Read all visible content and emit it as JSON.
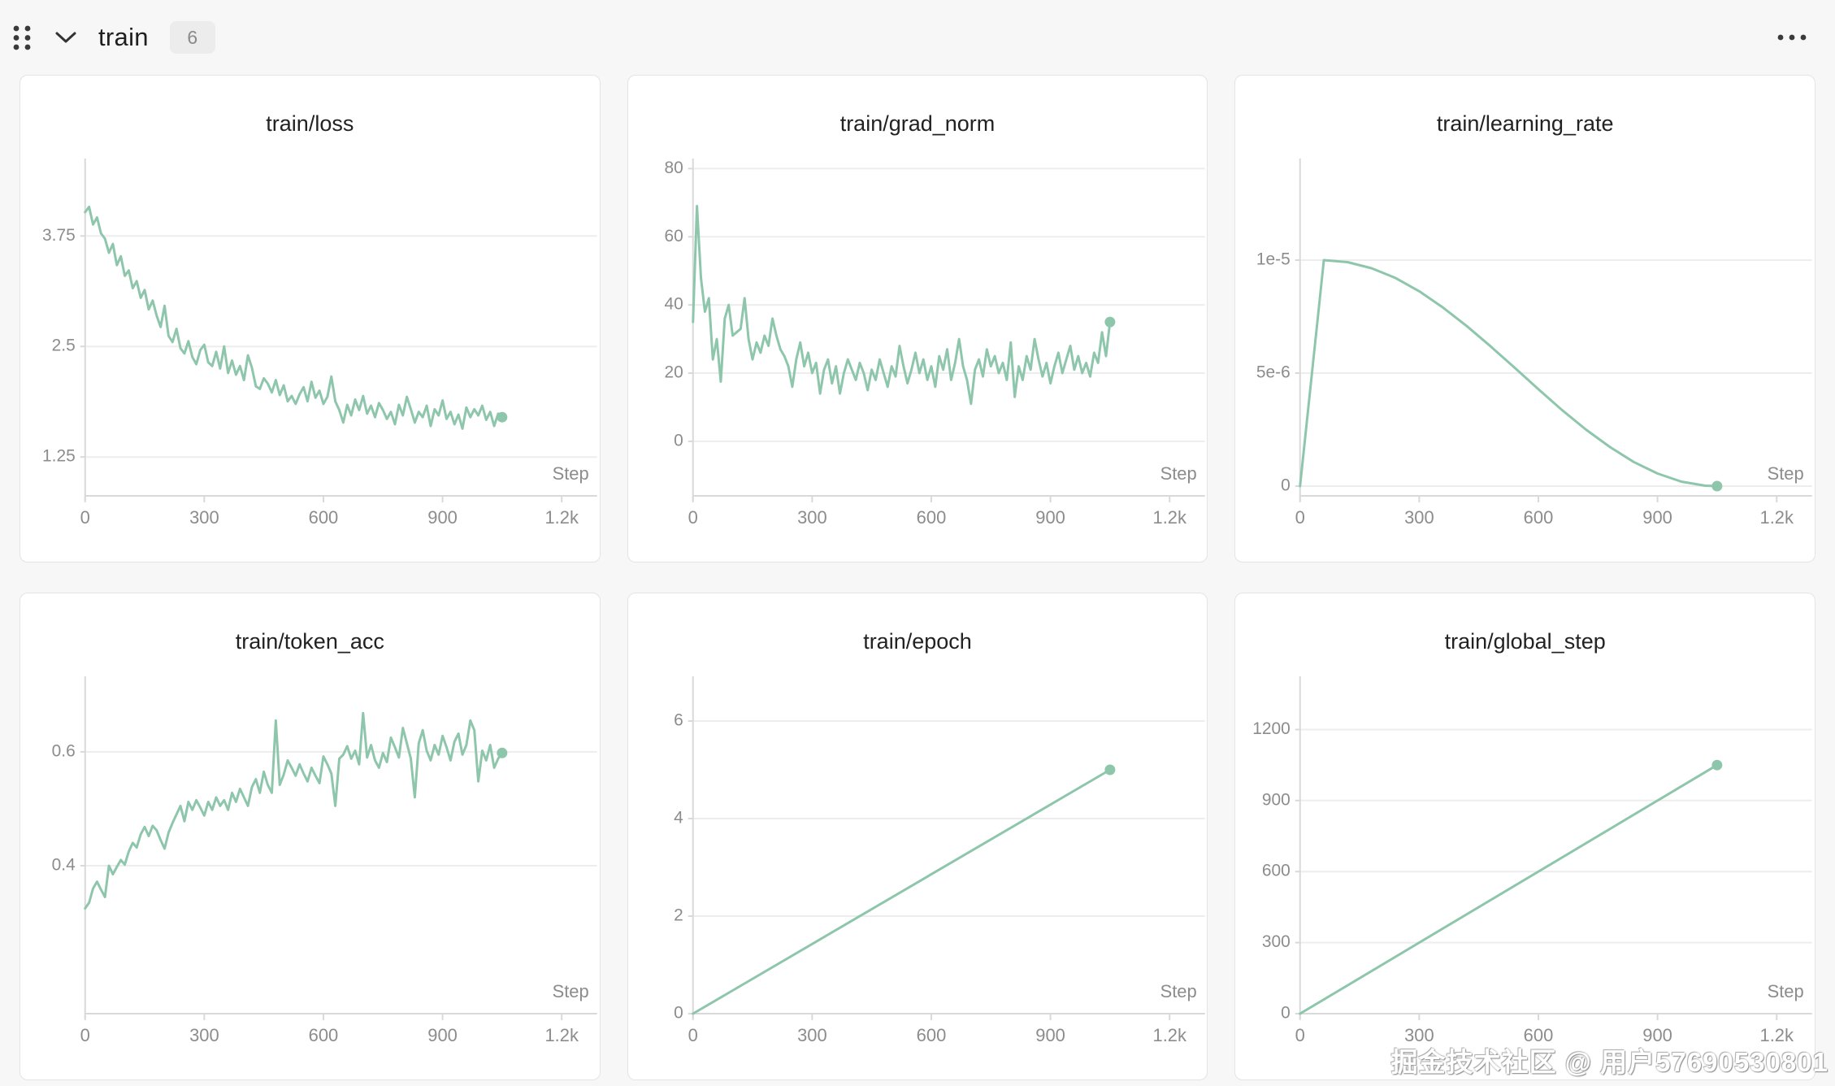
{
  "header": {
    "title": "train",
    "count": "6"
  },
  "watermark": {
    "text": "掘金技术社区 @ 用户57690530801"
  },
  "style": {
    "line_color": "#8ec6ac",
    "grid_color": "#ededed",
    "axis_color": "#d9d9d9",
    "tick_color": "#8c8c8c",
    "title_color": "#222222",
    "card_bg": "#ffffff",
    "page_bg": "#f7f7f8"
  },
  "chart_data": [
    {
      "type": "line",
      "title": "train/loss",
      "xlabel": "Step",
      "legend": "none",
      "grid": "horizontal",
      "xlim": [
        0,
        1240
      ],
      "ylim": [
        0.81,
        4.59
      ],
      "xticks": {
        "values": [
          0,
          300,
          600,
          900,
          1200
        ],
        "labels": [
          "0",
          "300",
          "600",
          "900",
          "1.2k"
        ]
      },
      "yticks": {
        "values": [
          1.25,
          2.5,
          3.75
        ],
        "labels": [
          "1.25",
          "2.5",
          "3.75"
        ]
      },
      "x_start": 0,
      "x_step": 10,
      "values": [
        4.02,
        4.08,
        3.88,
        3.96,
        3.78,
        3.72,
        3.56,
        3.66,
        3.42,
        3.52,
        3.3,
        3.36,
        3.16,
        3.24,
        3.05,
        3.14,
        2.92,
        3.02,
        2.85,
        2.72,
        2.96,
        2.62,
        2.55,
        2.7,
        2.48,
        2.42,
        2.56,
        2.38,
        2.3,
        2.46,
        2.52,
        2.32,
        2.28,
        2.44,
        2.25,
        2.5,
        2.2,
        2.34,
        2.18,
        2.28,
        2.12,
        2.4,
        2.26,
        2.05,
        2.02,
        2.14,
        2.08,
        1.98,
        2.12,
        1.95,
        2.06,
        1.88,
        1.94,
        1.85,
        1.96,
        2.04,
        1.88,
        2.1,
        1.92,
        2.0,
        1.85,
        1.93,
        2.16,
        1.88,
        1.78,
        1.64,
        1.84,
        1.72,
        1.9,
        1.78,
        1.94,
        1.74,
        1.83,
        1.7,
        1.86,
        1.78,
        1.68,
        1.76,
        1.62,
        1.84,
        1.72,
        1.93,
        1.79,
        1.64,
        1.76,
        1.7,
        1.83,
        1.6,
        1.79,
        1.72,
        1.89,
        1.68,
        1.76,
        1.62,
        1.73,
        1.57,
        1.81,
        1.7,
        1.79,
        1.72,
        1.83,
        1.67,
        1.76,
        1.6,
        1.74,
        1.7
      ],
      "end_dot": true
    },
    {
      "type": "line",
      "title": "train/grad_norm",
      "xlabel": "Step",
      "legend": "none",
      "grid": "horizontal",
      "xlim": [
        0,
        1240
      ],
      "ylim": [
        -16,
        82
      ],
      "xticks": {
        "values": [
          0,
          300,
          600,
          900,
          1200
        ],
        "labels": [
          "0",
          "300",
          "600",
          "900",
          "1.2k"
        ]
      },
      "yticks": {
        "values": [
          0,
          20,
          40,
          60,
          80
        ],
        "labels": [
          "0",
          "20",
          "40",
          "60",
          "80"
        ]
      },
      "x_start": 0,
      "x_step": 10,
      "values": [
        35,
        69,
        48,
        38,
        42,
        24,
        30,
        17.5,
        36,
        40,
        31,
        32,
        33,
        42,
        30,
        24,
        29,
        26,
        31,
        28,
        36,
        31,
        27,
        25,
        22,
        16,
        24,
        29,
        22,
        26,
        20,
        23,
        14,
        21,
        24,
        17,
        22,
        14,
        20,
        24,
        21,
        18,
        23,
        20,
        15,
        21,
        18,
        24,
        20,
        16,
        22,
        19,
        28,
        22,
        17,
        21,
        26,
        20,
        24,
        18,
        22,
        16,
        25,
        21,
        27,
        18,
        23,
        30,
        22,
        18,
        11,
        21,
        24,
        19,
        27,
        22,
        25,
        20,
        23,
        18,
        29,
        13,
        22,
        18,
        25,
        21,
        30,
        24,
        19,
        23,
        17,
        22,
        26,
        20,
        24,
        28,
        21,
        25,
        20,
        23,
        19,
        26,
        23,
        32,
        25,
        35
      ],
      "end_dot": true
    },
    {
      "type": "line",
      "title": "train/learning_rate",
      "xlabel": "Step",
      "legend": "none",
      "grid": "horizontal",
      "xlim": [
        0,
        1240
      ],
      "ylim": [
        -4.3e-07,
        1.435e-05
      ],
      "xticks": {
        "values": [
          0,
          300,
          600,
          900,
          1200
        ],
        "labels": [
          "0",
          "300",
          "600",
          "900",
          "1.2k"
        ]
      },
      "yticks": {
        "values": [
          0,
          5e-06,
          1e-05
        ],
        "labels": [
          "0",
          "5e-6",
          "1e-5"
        ]
      },
      "x": [
        0,
        30,
        60,
        120,
        180,
        240,
        300,
        360,
        420,
        480,
        540,
        600,
        660,
        720,
        780,
        840,
        900,
        960,
        1020,
        1050
      ],
      "values": [
        0,
        5e-06,
        1e-05,
        9.91e-06,
        9.64e-06,
        9.21e-06,
        8.62e-06,
        7.9e-06,
        7.08e-06,
        6.18e-06,
        5.24e-06,
        4.29e-06,
        3.36e-06,
        2.5e-06,
        1.73e-06,
        1.07e-06,
        5.6e-07,
        2e-07,
        2e-08,
        0
      ],
      "end_dot": true
    },
    {
      "type": "line",
      "title": "train/token_acc",
      "xlabel": "Step",
      "legend": "none",
      "grid": "horizontal",
      "xlim": [
        0,
        1240
      ],
      "ylim": [
        0.14,
        0.727
      ],
      "xticks": {
        "values": [
          0,
          300,
          600,
          900,
          1200
        ],
        "labels": [
          "0",
          "300",
          "600",
          "900",
          "1.2k"
        ]
      },
      "yticks": {
        "values": [
          0.4,
          0.6
        ],
        "labels": [
          "0.4",
          "0.6"
        ]
      },
      "x_start": 0,
      "x_step": 10,
      "values": [
        0.325,
        0.335,
        0.36,
        0.372,
        0.358,
        0.345,
        0.4,
        0.385,
        0.398,
        0.41,
        0.402,
        0.425,
        0.44,
        0.432,
        0.455,
        0.468,
        0.452,
        0.47,
        0.462,
        0.445,
        0.43,
        0.458,
        0.475,
        0.49,
        0.505,
        0.478,
        0.512,
        0.498,
        0.515,
        0.502,
        0.488,
        0.512,
        0.498,
        0.52,
        0.505,
        0.515,
        0.498,
        0.528,
        0.512,
        0.535,
        0.52,
        0.505,
        0.538,
        0.552,
        0.528,
        0.565,
        0.542,
        0.528,
        0.655,
        0.542,
        0.56,
        0.585,
        0.572,
        0.558,
        0.578,
        0.562,
        0.548,
        0.572,
        0.558,
        0.545,
        0.592,
        0.578,
        0.562,
        0.505,
        0.588,
        0.595,
        0.61,
        0.588,
        0.602,
        0.578,
        0.668,
        0.59,
        0.612,
        0.585,
        0.572,
        0.598,
        0.582,
        0.625,
        0.608,
        0.59,
        0.642,
        0.615,
        0.588,
        0.52,
        0.615,
        0.638,
        0.602,
        0.585,
        0.612,
        0.595,
        0.628,
        0.608,
        0.585,
        0.618,
        0.632,
        0.595,
        0.612,
        0.655,
        0.638,
        0.548,
        0.602,
        0.585,
        0.612,
        0.572,
        0.588,
        0.598
      ],
      "end_dot": true
    },
    {
      "type": "line",
      "title": "train/epoch",
      "xlabel": "Step",
      "legend": "none",
      "grid": "horizontal",
      "xlim": [
        0,
        1240
      ],
      "ylim": [
        0,
        6.85
      ],
      "xticks": {
        "values": [
          0,
          300,
          600,
          900,
          1200
        ],
        "labels": [
          "0",
          "300",
          "600",
          "900",
          "1.2k"
        ]
      },
      "yticks": {
        "values": [
          0,
          2,
          4,
          6
        ],
        "labels": [
          "0",
          "2",
          "4",
          "6"
        ]
      },
      "x": [
        0,
        1050
      ],
      "values": [
        0,
        5
      ],
      "end_dot": true
    },
    {
      "type": "line",
      "title": "train/global_step",
      "xlabel": "Step",
      "legend": "none",
      "grid": "horizontal",
      "xlim": [
        0,
        1240
      ],
      "ylim": [
        0,
        1411
      ],
      "xticks": {
        "values": [
          0,
          300,
          600,
          900,
          1200
        ],
        "labels": [
          "0",
          "300",
          "600",
          "900",
          "1.2k"
        ]
      },
      "yticks": {
        "values": [
          0,
          300,
          600,
          900,
          1200
        ],
        "labels": [
          "0",
          "300",
          "600",
          "900",
          "1200"
        ]
      },
      "x": [
        0,
        1050
      ],
      "values": [
        0,
        1050
      ],
      "end_dot": true
    }
  ]
}
